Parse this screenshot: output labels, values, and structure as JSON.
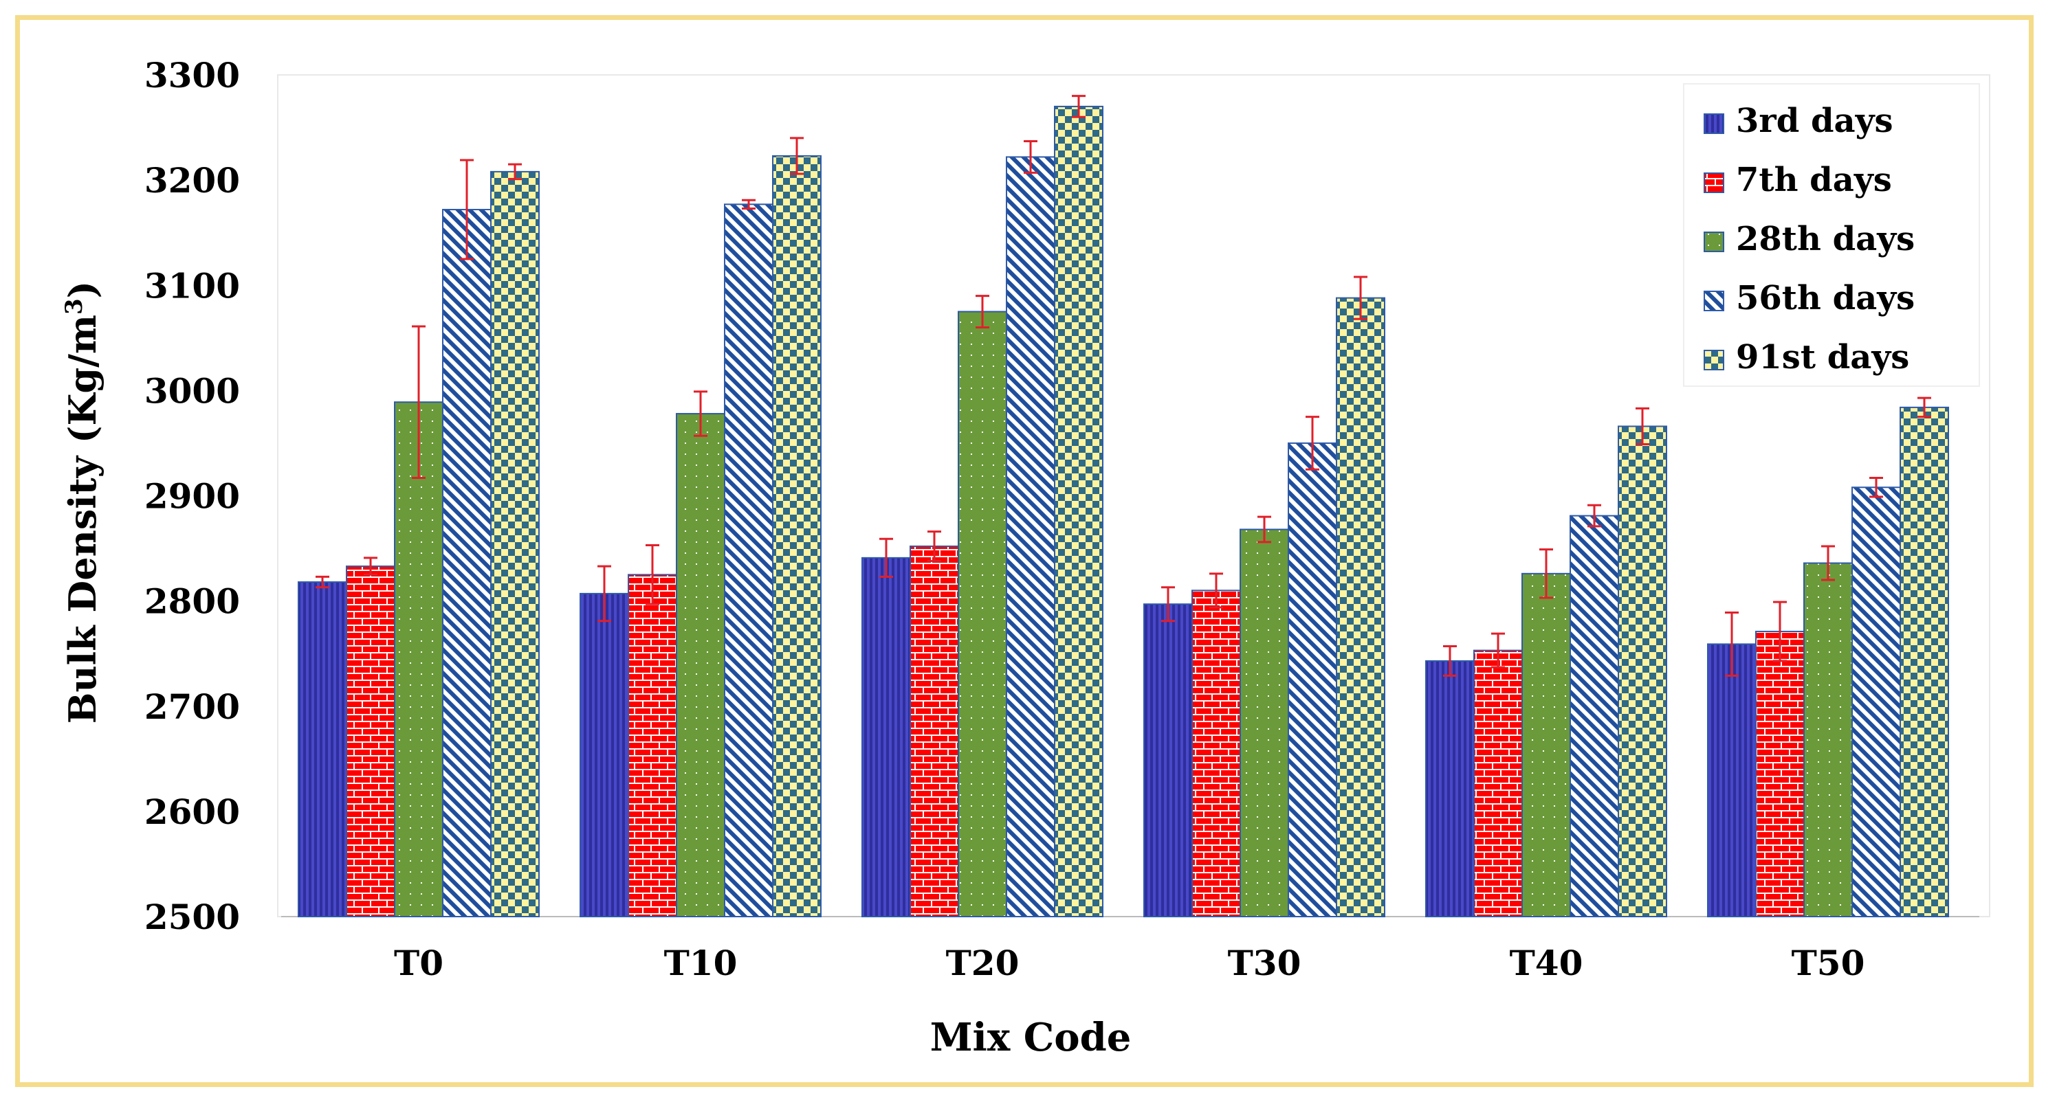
{
  "chart_data": {
    "type": "bar",
    "title": "",
    "xlabel": "Mix Code",
    "ylabel": "Bulk Density (Kg/m",
    "ylabel_sup": "3",
    "ylabel_close": ")",
    "ylim": [
      2500,
      3300
    ],
    "yticks": [
      "2500",
      "2600",
      "2700",
      "2800",
      "2900",
      "3000",
      "3100",
      "3200",
      "3300"
    ],
    "grid": false,
    "legend_position": "top-right",
    "categories": [
      "T0",
      "T10",
      "T20",
      "T30",
      "T40",
      "T50"
    ],
    "series": [
      {
        "name": "3rd days",
        "values": [
          2818,
          2807,
          2841,
          2797,
          2743,
          2759
        ],
        "errors": [
          5,
          26,
          18,
          16,
          14,
          30
        ],
        "color": "#2e2e9e",
        "pattern": "vertical-lines"
      },
      {
        "name": "7th days",
        "values": [
          2833,
          2825,
          2852,
          2810,
          2753,
          2771
        ],
        "errors": [
          8,
          28,
          14,
          16,
          16,
          28
        ],
        "color": "#ff0000",
        "pattern": "brick"
      },
      {
        "name": "28th days",
        "values": [
          2989,
          2978,
          3075,
          2868,
          2826,
          2836
        ],
        "errors": [
          72,
          21,
          15,
          12,
          23,
          16
        ],
        "color": "#6b9a3a",
        "pattern": "dots"
      },
      {
        "name": "56th days",
        "values": [
          3172,
          3177,
          3222,
          2950,
          2881,
          2908
        ],
        "errors": [
          47,
          4,
          15,
          25,
          10,
          9
        ],
        "color": "#1f4e9c",
        "pattern": "diagonal"
      },
      {
        "name": "91st days",
        "values": [
          3208,
          3223,
          3270,
          3088,
          2966,
          2984
        ],
        "errors": [
          7,
          17,
          10,
          20,
          17,
          9
        ],
        "color": "#fff3a0",
        "pattern": "checker"
      }
    ]
  }
}
